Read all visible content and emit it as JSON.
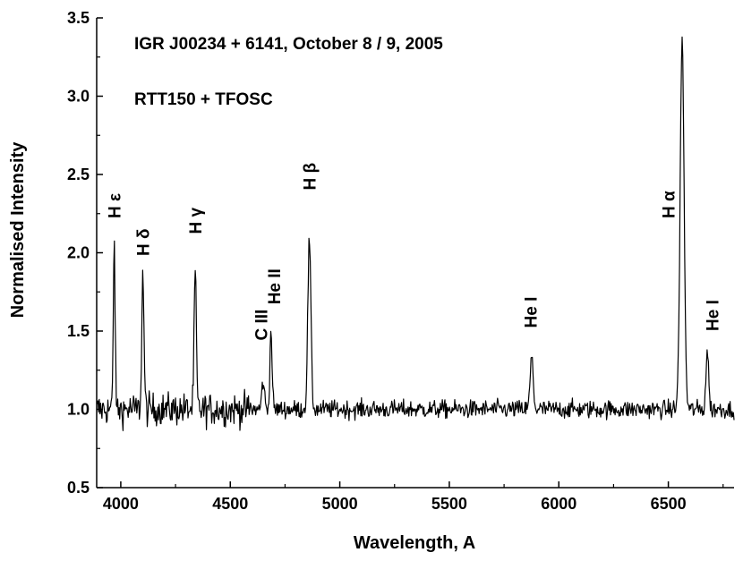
{
  "chart_data": {
    "type": "line",
    "title": "IGR J00234 + 6141, October 8 / 9, 2005",
    "subtitle": "RTT150 + TFOSC",
    "xlabel": "Wavelength, A",
    "ylabel": "Normalised Intensity",
    "xlim": [
      3890,
      6800
    ],
    "ylim": [
      0.5,
      3.5
    ],
    "xticks": [
      4000,
      4500,
      5000,
      5500,
      6000,
      6500
    ],
    "xtick_labels": [
      "4000",
      "4500",
      "5000",
      "5500",
      "6000",
      "6500"
    ],
    "yticks": [
      0.5,
      1.0,
      1.5,
      2.0,
      2.5,
      3.0,
      3.5
    ],
    "ytick_labels": [
      "0.5",
      "1.0",
      "1.5",
      "2.0",
      "2.5",
      "3.0",
      "3.5"
    ],
    "grid": false,
    "legend": "none",
    "series": [
      {
        "color": "#000000",
        "continuum": 1.0,
        "noise_amplitude": 0.1,
        "emission_lines": [
          {
            "x": 3970,
            "y": 2.09,
            "width": 4
          },
          {
            "x": 4101,
            "y": 1.86,
            "width": 5
          },
          {
            "x": 4340,
            "y": 1.87,
            "width": 5
          },
          {
            "x": 4650,
            "y": 1.18,
            "width": 6
          },
          {
            "x": 4686,
            "y": 1.5,
            "width": 5
          },
          {
            "x": 4861,
            "y": 2.08,
            "width": 7
          },
          {
            "x": 5876,
            "y": 1.33,
            "width": 7
          },
          {
            "x": 6563,
            "y": 3.35,
            "width": 9
          },
          {
            "x": 6678,
            "y": 1.38,
            "width": 6
          }
        ]
      }
    ],
    "line_labels": [
      {
        "text": "H ε",
        "x": 3970,
        "y": 2.22
      },
      {
        "text": "H δ",
        "x": 4101,
        "y": 1.98
      },
      {
        "text": "H γ",
        "x": 4340,
        "y": 2.12
      },
      {
        "text": "C III",
        "x": 4640,
        "y": 1.44
      },
      {
        "text": "He II",
        "x": 4700,
        "y": 1.67
      },
      {
        "text": "H β",
        "x": 4861,
        "y": 2.4
      },
      {
        "text": "He I",
        "x": 5870,
        "y": 1.52
      },
      {
        "text": "H α",
        "x": 6500,
        "y": 2.22
      },
      {
        "text": "He I",
        "x": 6700,
        "y": 1.5
      }
    ]
  }
}
